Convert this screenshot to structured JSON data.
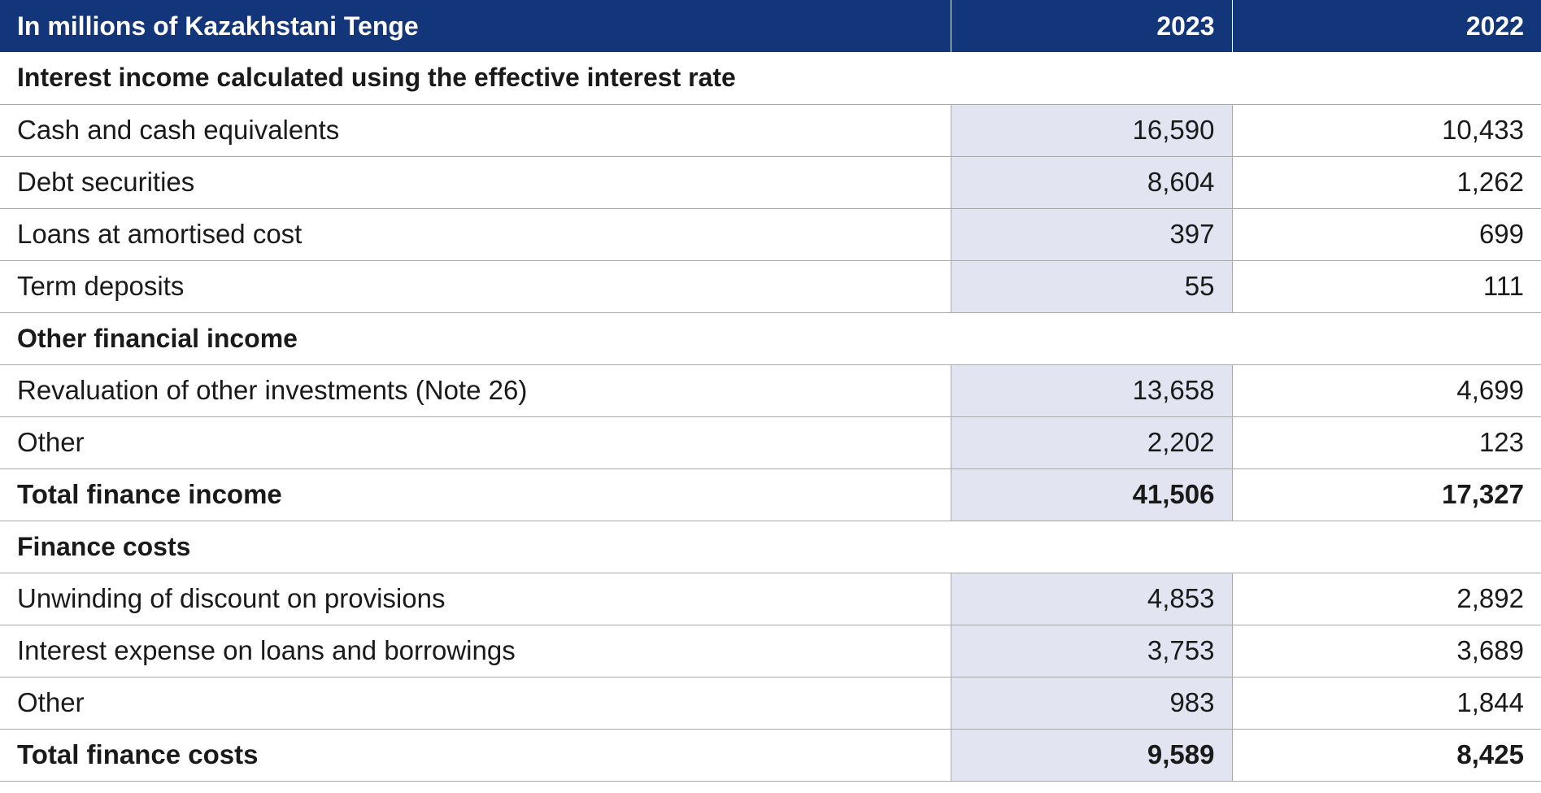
{
  "header": {
    "label": "In millions of Kazakhstani Tenge",
    "year1": "2023",
    "year2": "2022"
  },
  "rows": [
    {
      "type": "section",
      "label": "Interest income calculated using the effective interest rate"
    },
    {
      "type": "item",
      "label": "Cash and cash equivalents",
      "v2023": "16,590",
      "v2022": "10,433"
    },
    {
      "type": "item",
      "label": "Debt securities",
      "v2023": "8,604",
      "v2022": "1,262"
    },
    {
      "type": "item",
      "label": "Loans at amortised cost",
      "v2023": "397",
      "v2022": "699"
    },
    {
      "type": "item",
      "label": "Term deposits",
      "v2023": "55",
      "v2022": "111"
    },
    {
      "type": "section",
      "label": "Other financial income"
    },
    {
      "type": "item",
      "label": "Revaluation of other investments (Note 26)",
      "v2023": "13,658",
      "v2022": "4,699"
    },
    {
      "type": "item",
      "label": "Other",
      "v2023": "2,202",
      "v2022": "123"
    },
    {
      "type": "total",
      "label": "Total finance income",
      "v2023": "41,506",
      "v2022": "17,327"
    },
    {
      "type": "section",
      "label": "Finance costs"
    },
    {
      "type": "item",
      "label": "Unwinding of discount on provisions",
      "v2023": "4,853",
      "v2022": "2,892"
    },
    {
      "type": "item",
      "label": "Interest expense on loans and borrowings",
      "v2023": "3,753",
      "v2022": "3,689"
    },
    {
      "type": "item",
      "label": "Other",
      "v2023": "983",
      "v2022": "1,844"
    },
    {
      "type": "total",
      "label": "Total finance costs",
      "v2023": "9,589",
      "v2022": "8,425"
    }
  ]
}
